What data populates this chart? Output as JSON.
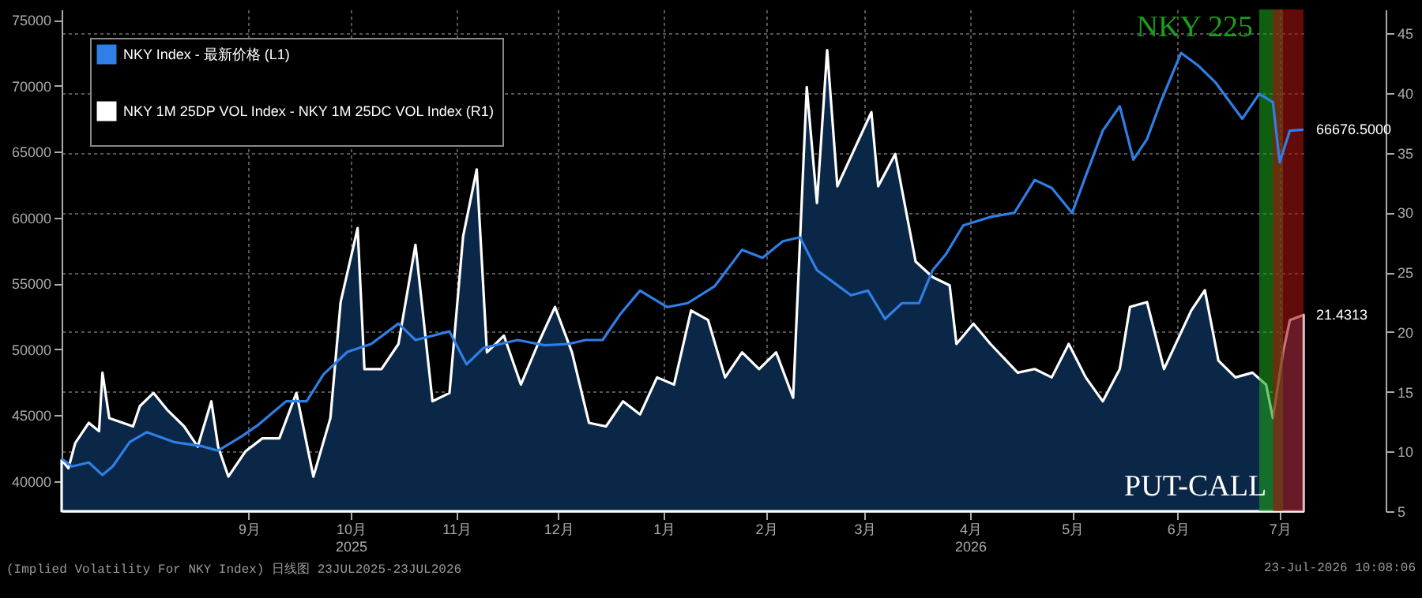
{
  "chart_data": {
    "type": "line",
    "xlim": [
      "2025-07-23",
      "2026-07-23"
    ],
    "xticks": [
      {
        "value": "2025-09-16",
        "label": "9月"
      },
      {
        "value": "2025-10-16",
        "label": "10月\n2025"
      },
      {
        "value": "2025-11-16",
        "label": "11月"
      },
      {
        "value": "2025-12-16",
        "label": "12月"
      },
      {
        "value": "2026-01-16",
        "label": "1月"
      },
      {
        "value": "2026-02-15",
        "label": "2月"
      },
      {
        "value": "2026-03-16",
        "label": "3月"
      },
      {
        "value": "2026-04-16",
        "label": "4月\n2026"
      },
      {
        "value": "2026-05-16",
        "label": "5月"
      },
      {
        "value": "2026-06-16",
        "label": "6月"
      },
      {
        "value": "2026-07-16",
        "label": "7月"
      }
    ],
    "ylim": [
      37700,
      75800
    ],
    "yticks": [
      40000,
      45000,
      50000,
      55000,
      60000,
      65000,
      70000,
      75000
    ],
    "y2lim": [
      5,
      47
    ],
    "y2ticks": [
      5,
      10,
      15,
      20,
      25,
      30,
      35,
      40,
      45
    ],
    "grid": true,
    "legend": "top left",
    "series": [
      {
        "name": "NKY Index - 最新价格 (L1)",
        "color": "#2f7fe6",
        "x": [
          "2025-07-23",
          "2025-07-26",
          "2025-07-31",
          "2025-08-04",
          "2025-08-07",
          "2025-08-12",
          "2025-08-17",
          "2025-08-25",
          "2025-09-02",
          "2025-09-07",
          "2025-09-14",
          "2025-09-19",
          "2025-09-27",
          "2025-10-03",
          "2025-10-08",
          "2025-10-15",
          "2025-10-22",
          "2025-10-30",
          "2025-11-04",
          "2025-11-14",
          "2025-11-19",
          "2025-11-24",
          "2025-11-29",
          "2025-12-04",
          "2025-12-12",
          "2025-12-19",
          "2025-12-24",
          "2025-12-29",
          "2026-01-03",
          "2026-01-09",
          "2026-01-17",
          "2026-01-23",
          "2026-01-31",
          "2026-02-08",
          "2026-02-14",
          "2026-02-20",
          "2026-02-25",
          "2026-03-02",
          "2026-03-07",
          "2026-03-12",
          "2026-03-17",
          "2026-03-22",
          "2026-03-27",
          "2026-04-01",
          "2026-04-05",
          "2026-04-09",
          "2026-04-14",
          "2026-04-22",
          "2026-04-29",
          "2026-05-05",
          "2026-05-10",
          "2026-05-16",
          "2026-05-20",
          "2026-05-25",
          "2026-05-30",
          "2026-06-03",
          "2026-06-07",
          "2026-06-11",
          "2026-06-17",
          "2026-06-22",
          "2026-06-27",
          "2026-07-05",
          "2026-07-10",
          "2026-07-14",
          "2026-07-16",
          "2026-07-19",
          "2026-07-23"
        ],
        "values": [
          41700,
          41100,
          41400,
          40450,
          41100,
          42950,
          43700,
          42950,
          42650,
          42300,
          43400,
          44300,
          46050,
          46050,
          48100,
          49800,
          50400,
          51950,
          50700,
          51350,
          48850,
          50100,
          50400,
          50700,
          50300,
          50400,
          50700,
          50700,
          52600,
          54450,
          53200,
          53500,
          54800,
          57550,
          56950,
          58200,
          58500,
          56000,
          55050,
          54100,
          54450,
          52300,
          53500,
          53500,
          56000,
          57250,
          59400,
          60050,
          60350,
          62850,
          62250,
          60350,
          63150,
          66600,
          68450,
          64400,
          65950,
          68750,
          72500,
          71550,
          70300,
          67500,
          69400,
          68750,
          64200,
          66600,
          66676.5
        ],
        "value_labels": [
          null,
          null,
          null,
          null,
          null,
          null,
          null,
          null,
          null,
          null,
          null,
          null,
          null,
          null,
          null,
          null,
          null,
          null,
          null,
          null,
          null,
          null,
          null,
          null,
          null,
          null,
          null,
          null,
          null,
          null,
          null,
          null,
          null,
          null,
          null,
          null,
          null,
          null,
          null,
          null,
          null,
          null,
          null,
          null,
          null,
          null,
          null,
          null,
          null,
          null,
          null,
          null,
          null,
          null,
          null,
          null,
          null,
          null,
          null,
          null,
          null,
          null,
          null,
          null,
          null,
          null,
          "66676.5000"
        ]
      },
      {
        "name": "NKY 1M 25DP VOL Index - NKY 1M 25DC VOL Index (R1)",
        "color": "#ffffff",
        "type": "area",
        "axis": "y2",
        "x": [
          "2025-07-23",
          "2025-07-25",
          "2025-07-27",
          "2025-07-31",
          "2025-08-03",
          "2025-08-04",
          "2025-08-06",
          "2025-08-13",
          "2025-08-15",
          "2025-08-19",
          "2025-08-23",
          "2025-08-28",
          "2025-09-01",
          "2025-09-05",
          "2025-09-07",
          "2025-09-10",
          "2025-09-15",
          "2025-09-20",
          "2025-09-25",
          "2025-09-30",
          "2025-10-05",
          "2025-10-10",
          "2025-10-13",
          "2025-10-18",
          "2025-10-20",
          "2025-10-25",
          "2025-10-30",
          "2025-11-04",
          "2025-11-09",
          "2025-11-14",
          "2025-11-18",
          "2025-11-22",
          "2025-11-25",
          "2025-11-30",
          "2025-12-05",
          "2025-12-10",
          "2025-12-15",
          "2025-12-20",
          "2025-12-25",
          "2025-12-30",
          "2026-01-04",
          "2026-01-09",
          "2026-01-14",
          "2026-01-19",
          "2026-01-24",
          "2026-01-29",
          "2026-02-03",
          "2026-02-08",
          "2026-02-13",
          "2026-02-18",
          "2026-02-23",
          "2026-02-27",
          "2026-03-02",
          "2026-03-05",
          "2026-03-08",
          "2026-03-13",
          "2026-03-18",
          "2026-03-20",
          "2026-03-25",
          "2026-03-31",
          "2026-04-05",
          "2026-04-10",
          "2026-04-12",
          "2026-04-17",
          "2026-04-22",
          "2026-04-30",
          "2026-05-05",
          "2026-05-10",
          "2026-05-15",
          "2026-05-20",
          "2026-05-25",
          "2026-05-30",
          "2026-06-02",
          "2026-06-07",
          "2026-06-12",
          "2026-06-20",
          "2026-06-24",
          "2026-06-28",
          "2026-07-03",
          "2026-07-08",
          "2026-07-12",
          "2026-07-14",
          "2026-07-17",
          "2026-07-19",
          "2026-07-23"
        ],
        "values": [
          9.3,
          8.6,
          10.7,
          12.4,
          11.7,
          16.6,
          12.8,
          12.1,
          13.8,
          14.9,
          13.5,
          12.1,
          10.4,
          14.2,
          10.4,
          7.9,
          10.0,
          11.1,
          11.1,
          14.9,
          7.9,
          12.8,
          22.5,
          28.7,
          16.9,
          16.9,
          19.0,
          27.3,
          14.2,
          14.9,
          28.0,
          33.6,
          18.3,
          19.7,
          15.6,
          19.0,
          22.1,
          18.3,
          12.4,
          12.1,
          14.2,
          13.1,
          16.2,
          15.6,
          21.8,
          21.0,
          16.2,
          18.3,
          16.9,
          18.3,
          14.5,
          40.5,
          30.8,
          43.6,
          32.2,
          35.3,
          38.4,
          32.2,
          34.9,
          25.9,
          24.6,
          23.9,
          19.0,
          20.7,
          19.0,
          16.6,
          16.9,
          16.2,
          19.0,
          16.2,
          14.2,
          16.9,
          22.1,
          22.5,
          16.9,
          21.8,
          23.5,
          17.6,
          16.2,
          16.6,
          15.6,
          12.8,
          18.3,
          21.0,
          21.4313
        ],
        "value_labels": [
          null,
          null,
          null,
          null,
          null,
          null,
          null,
          null,
          null,
          null,
          null,
          null,
          null,
          null,
          null,
          null,
          null,
          null,
          null,
          null,
          null,
          null,
          null,
          null,
          null,
          null,
          null,
          null,
          null,
          null,
          null,
          null,
          null,
          null,
          null,
          null,
          null,
          null,
          null,
          null,
          null,
          null,
          null,
          null,
          null,
          null,
          null,
          null,
          null,
          null,
          null,
          null,
          null,
          null,
          null,
          null,
          null,
          null,
          null,
          null,
          null,
          null,
          null,
          null,
          null,
          null,
          null,
          null,
          null,
          null,
          null,
          null,
          null,
          null,
          null,
          null,
          null,
          null,
          null,
          null,
          null,
          null,
          null,
          null,
          "21.4313"
        ]
      }
    ],
    "bands": [
      {
        "axis": "x",
        "from": "2026-07-10",
        "to": "2026-07-17",
        "label": "NKY 225",
        "color": "#1a9e1a"
      },
      {
        "axis": "x",
        "from": "2026-07-14",
        "to": "2026-07-23",
        "label": "PUT-CALL",
        "color": "#a51010"
      }
    ],
    "annotations": [
      "(Implied Volatility For NKY Index) 日线图 23JUL2025-23JUL2026",
      "23-Jul-2026 10:08:06"
    ]
  }
}
